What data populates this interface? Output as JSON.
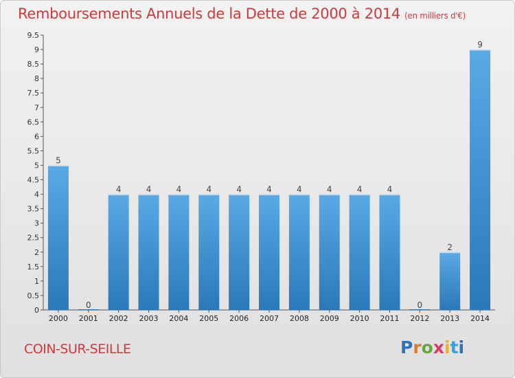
{
  "header": {
    "title": "Remboursements Annuels de la Dette de 2000 à 2014",
    "unit": "(en milliers d'€)"
  },
  "footer": {
    "commune": "COIN-SUR-SEILLE",
    "logo_letters": [
      "P",
      "r",
      "o",
      "x",
      "i",
      "t",
      "i"
    ]
  },
  "colors": {
    "title": "#cc3b3b",
    "bar_light": "#5aaae6",
    "bar_dark": "#2a78b8"
  },
  "chart_data": {
    "type": "bar",
    "title": "Remboursements Annuels de la Dette de 2000 à 2014",
    "categories": [
      "2000",
      "2001",
      "2002",
      "2003",
      "2004",
      "2005",
      "2006",
      "2007",
      "2008",
      "2009",
      "2010",
      "2011",
      "2012",
      "2013",
      "2014"
    ],
    "values": [
      5,
      0,
      4,
      4,
      4,
      4,
      4,
      4,
      4,
      4,
      4,
      4,
      0,
      2,
      9
    ],
    "data_labels": [
      "5",
      "0",
      "4",
      "4",
      "4",
      "4",
      "4",
      "4",
      "4",
      "4",
      "4",
      "4",
      "0",
      "2",
      "9"
    ],
    "yticks": [
      "0",
      "0.5",
      "1",
      "1.5",
      "2",
      "2.5",
      "3",
      "3.5",
      "4",
      "4.5",
      "5",
      "5.5",
      "6",
      "6.5",
      "7",
      "7.5",
      "8",
      "8.5",
      "9",
      "9.5"
    ],
    "ylim": [
      0,
      9.5
    ],
    "grid": false,
    "legend": "none"
  }
}
